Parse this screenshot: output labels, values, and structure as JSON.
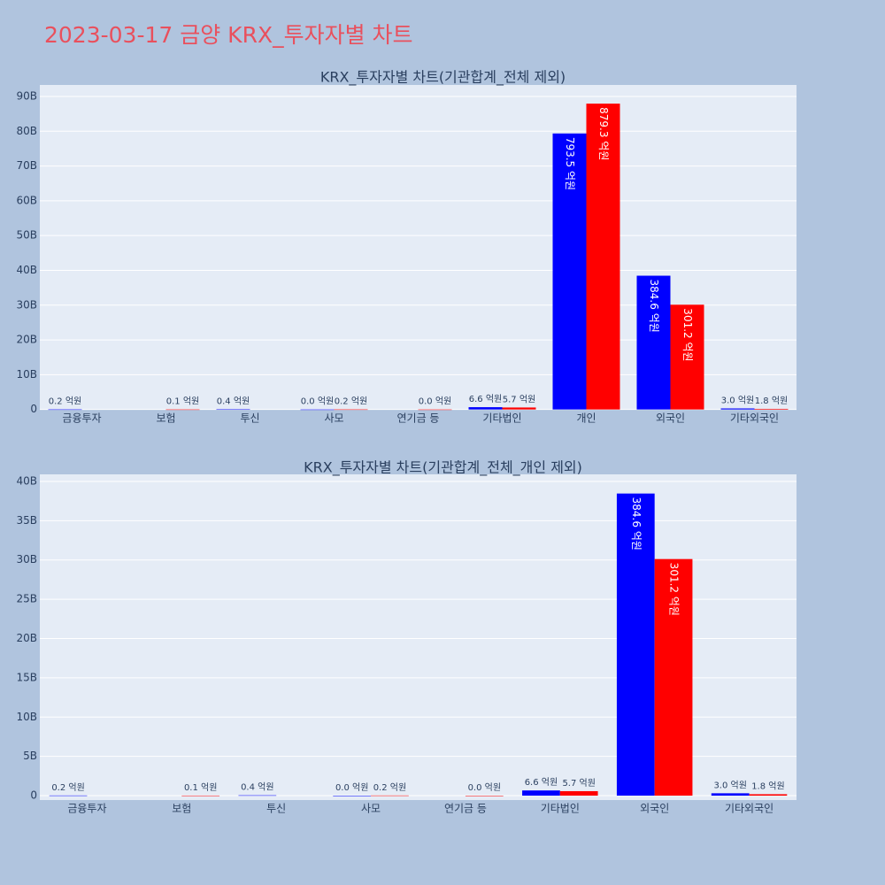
{
  "title": "2023-03-17 금양 KRX_투자자별 차트",
  "chart_data": [
    {
      "type": "bar",
      "title": "KRX_투자자별 차트(기관합계_전체 제외)",
      "categories": [
        "금융투자",
        "보험",
        "투신",
        "사모",
        "연기금 등",
        "기타법인",
        "개인",
        "외국인",
        "기타외국인"
      ],
      "series": [
        {
          "color": "#0000ff",
          "values": [
            0.02,
            null,
            0.04,
            0.0,
            null,
            0.66,
            79.35,
            38.46,
            0.3
          ],
          "value_labels": [
            "0.2 억원",
            null,
            "0.4 억원",
            "0.0 억원",
            null,
            "6.6 억원",
            "793.5 억원",
            "384.6 억원",
            "3.0 억원"
          ]
        },
        {
          "color": "#ff0000",
          "values": [
            null,
            0.01,
            null,
            0.02,
            0.0,
            0.57,
            87.93,
            30.12,
            0.18
          ],
          "value_labels": [
            null,
            "0.1 억원",
            null,
            "0.2 억원",
            "0.0 억원",
            "5.7 억원",
            "879.3 억원",
            "301.2 억원",
            "1.8 억원"
          ]
        }
      ],
      "ylim": [
        -0.08,
        93.3
      ],
      "yticks": [
        0,
        {
          "value": 10,
          "label": "10B"
        },
        {
          "value": 20,
          "label": "20B"
        },
        {
          "value": 30,
          "label": "30B"
        },
        {
          "value": 40,
          "label": "40B"
        },
        {
          "value": 50,
          "label": "50B"
        },
        {
          "value": 60,
          "label": "60B"
        },
        {
          "value": 70,
          "label": "70B"
        },
        {
          "value": 80,
          "label": "80B"
        },
        {
          "value": 90,
          "label": "90B"
        }
      ],
      "grid": true
    },
    {
      "type": "bar",
      "title": "KRX_투자자별 차트(기관합계_전체_개인 제외)",
      "categories": [
        "금융투자",
        "보험",
        "투신",
        "사모",
        "연기금 등",
        "기타법인",
        "외국인",
        "기타외국인"
      ],
      "series": [
        {
          "color": "#0000ff",
          "values": [
            0.02,
            null,
            0.04,
            0.0,
            null,
            0.66,
            38.46,
            0.3
          ],
          "value_labels": [
            "0.2 억원",
            null,
            "0.4 억원",
            "0.0 억원",
            null,
            "6.6 억원",
            "384.6 억원",
            "3.0 억원"
          ]
        },
        {
          "color": "#ff0000",
          "values": [
            null,
            0.01,
            null,
            0.02,
            0.0,
            0.57,
            30.12,
            0.18
          ],
          "value_labels": [
            null,
            "0.1 억원",
            null,
            "0.2 억원",
            "0.0 억원",
            "5.7 억원",
            "301.2 억원",
            "1.8 억원"
          ]
        }
      ],
      "ylim": [
        -0.56,
        40.9
      ],
      "yticks": [
        0,
        {
          "value": 5,
          "label": "5B"
        },
        {
          "value": 10,
          "label": "10B"
        },
        {
          "value": 15,
          "label": "15B"
        },
        {
          "value": 20,
          "label": "20B"
        },
        {
          "value": 25,
          "label": "25B"
        },
        {
          "value": 30,
          "label": "30B"
        },
        {
          "value": 35,
          "label": "35B"
        },
        {
          "value": 40,
          "label": "40B"
        }
      ],
      "grid": true
    }
  ]
}
